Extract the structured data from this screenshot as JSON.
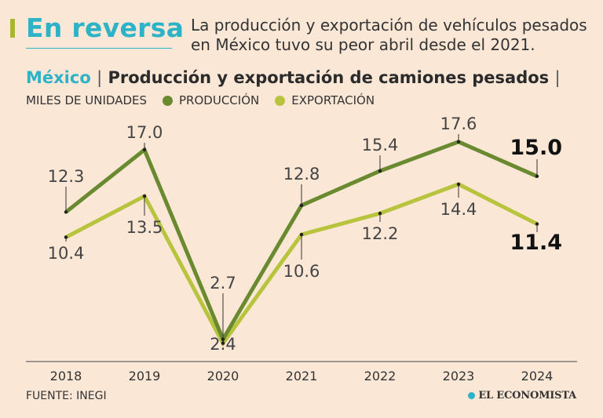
{
  "header": {
    "headline": "En reversa",
    "subhead": "La producción y exportación de vehículos pesados en México tuvo su peor abril desde el 2021."
  },
  "chart_title": {
    "country": "México",
    "separator": "|",
    "text": "Producción y exportación de camiones pesados",
    "trailing": "|"
  },
  "legend": {
    "units": "MILES DE UNIDADES",
    "items": [
      {
        "label": "PRODUCCIÓN",
        "color": "#6a8a30"
      },
      {
        "label": "EXPORTACIÓN",
        "color": "#b8c43e"
      }
    ]
  },
  "chart_data": {
    "type": "line",
    "title": "Producción y exportación de camiones pesados",
    "ylabel": "Miles de unidades",
    "x": [
      "2018",
      "2019",
      "2020",
      "2021",
      "2022",
      "2023",
      "2024"
    ],
    "series": [
      {
        "name": "PRODUCCIÓN",
        "color": "#6a8a30",
        "values": [
          12.3,
          17.0,
          2.7,
          12.8,
          15.4,
          17.6,
          15.0
        ]
      },
      {
        "name": "EXPORTACIÓN",
        "color": "#b8c43e",
        "values": [
          10.4,
          13.5,
          2.4,
          10.6,
          12.2,
          14.4,
          11.4
        ]
      }
    ]
  },
  "footer": {
    "source": "FUENTE: INEGI",
    "brand": "EL ECONOMISTA",
    "brand_color": "#2db3c7"
  }
}
